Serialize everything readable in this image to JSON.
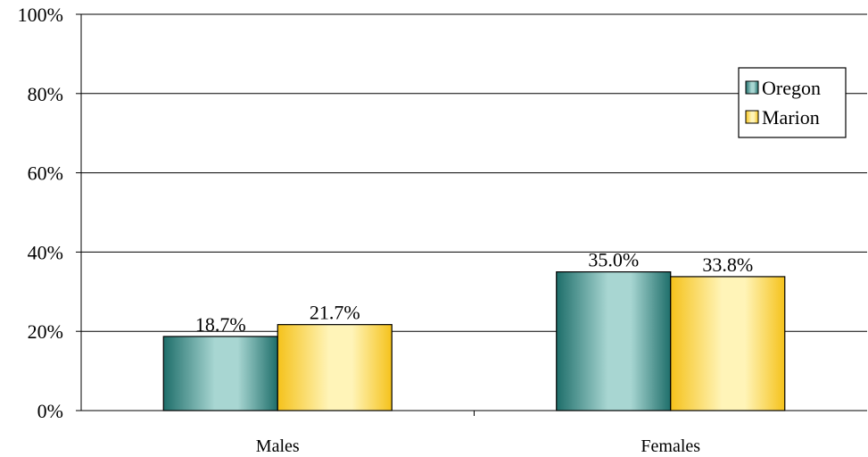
{
  "chart_data": {
    "type": "bar",
    "categories": [
      "Males",
      "Females"
    ],
    "series": [
      {
        "name": "Oregon",
        "values": [
          18.7,
          35.0
        ],
        "labels": [
          "18.7%",
          "35.0%"
        ],
        "color_dark": "#1e6e6a",
        "color_light": "#a8d6d2"
      },
      {
        "name": "Marion",
        "values": [
          21.7,
          33.8
        ],
        "labels": [
          "21.7%",
          "33.8%"
        ],
        "color_dark": "#f5c21b",
        "color_light": "#fff4b8"
      }
    ],
    "yticks": [
      "0%",
      "20%",
      "40%",
      "60%",
      "80%",
      "100%"
    ],
    "ylim": [
      0,
      100
    ],
    "grid": true,
    "legend_position": "top-right"
  }
}
